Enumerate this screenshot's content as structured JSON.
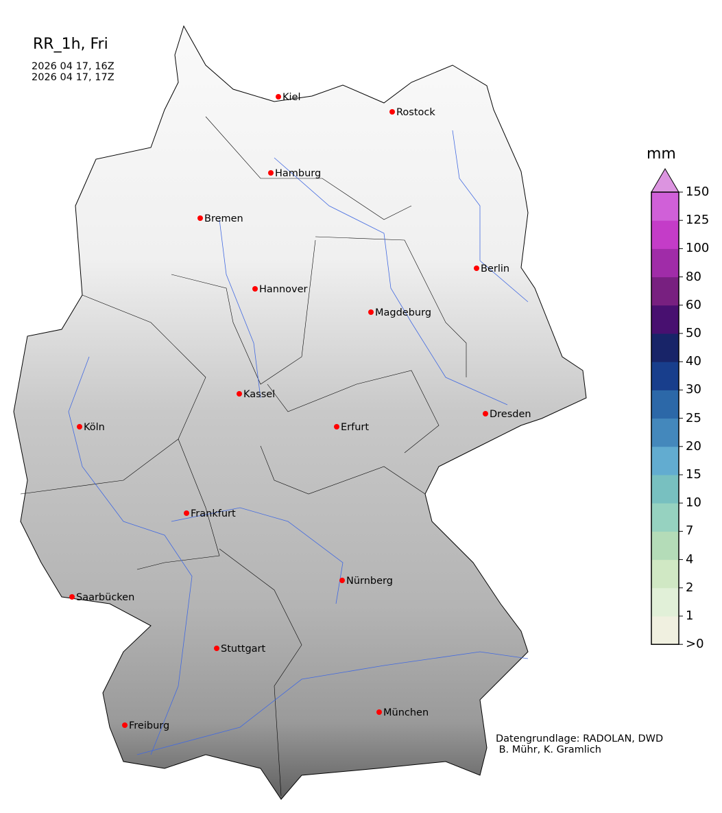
{
  "header": {
    "title": "RR_1h, Fri",
    "period_start": "2026 04 17, 16Z",
    "period_end": "2026 04 17, 17Z"
  },
  "map": {
    "region": "Germany",
    "background": "terrain-grayscale",
    "city_marker_color": "#ff0000",
    "river_color": "#4169e1",
    "cities": [
      {
        "name": "Kiel"
      },
      {
        "name": "Rostock"
      },
      {
        "name": "Hamburg"
      },
      {
        "name": "Bremen"
      },
      {
        "name": "Berlin"
      },
      {
        "name": "Hannover"
      },
      {
        "name": "Magdeburg"
      },
      {
        "name": "Kassel"
      },
      {
        "name": "Köln"
      },
      {
        "name": "Erfurt"
      },
      {
        "name": "Dresden"
      },
      {
        "name": "Frankfurt"
      },
      {
        "name": "Nürnberg"
      },
      {
        "name": "Saarbücken"
      },
      {
        "name": "Stuttgart"
      },
      {
        "name": "Freiburg"
      },
      {
        "name": "München"
      }
    ]
  },
  "colorbar": {
    "unit": "mm",
    "extend": "max",
    "ticks": [
      ">0",
      "1",
      "2",
      "4",
      "7",
      "10",
      "15",
      "20",
      "25",
      "30",
      "40",
      "50",
      "60",
      "80",
      "100",
      "125",
      "150"
    ],
    "colors": [
      "#f0f0e0",
      "#e1f0d8",
      "#d0e8c4",
      "#b4dcb8",
      "#96d2c0",
      "#78c0c0",
      "#62acd0",
      "#4488bc",
      "#2c68a8",
      "#183e8c",
      "#182468",
      "#481070",
      "#782080",
      "#a02ca8",
      "#c43cc8",
      "#d060d8"
    ],
    "extend_color": "#dc94e0"
  },
  "credit": {
    "line1": "Datengrundlage: RADOLAN, DWD",
    "line2": " B. Mühr, K. Gramlich"
  }
}
